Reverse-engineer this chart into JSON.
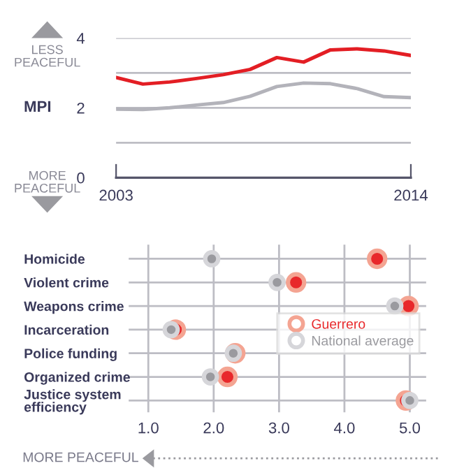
{
  "chart_data": [
    {
      "type": "line",
      "ylabel": "MPI",
      "x": [
        2003,
        2004,
        2005,
        2006,
        2007,
        2008,
        2009,
        2010,
        2011,
        2012,
        2013,
        2014
      ],
      "series": [
        {
          "color": "#e31e24",
          "values": [
            2.87,
            2.68,
            2.74,
            2.84,
            2.95,
            3.1,
            3.44,
            3.31,
            3.66,
            3.69,
            3.63,
            3.5
          ]
        },
        {
          "color": "#b3b3ba",
          "values": [
            1.96,
            1.95,
            2.0,
            2.08,
            2.15,
            2.33,
            2.61,
            2.71,
            2.69,
            2.55,
            2.32,
            2.29
          ]
        }
      ],
      "xlim": [
        2003,
        2014
      ],
      "xticks": [
        2003,
        2014
      ],
      "ylim": [
        0,
        4
      ],
      "yticks": [
        0,
        {
          "value": 1,
          "label": null
        },
        2,
        {
          "value": 3,
          "label": null
        },
        4
      ],
      "grid": "y",
      "line_style": "solid",
      "marker": "none",
      "annotations": [
        "LESS\nPEACEFUL",
        "MORE\nPEACEFUL"
      ]
    },
    {
      "type": "scatter",
      "orientation": "horizontal",
      "categories": [
        "Homicide",
        "Violent crime",
        "Weapons crime",
        "Incarceration",
        "Police funding",
        "Organized crime",
        "Justice system\nefficiency"
      ],
      "series": [
        {
          "name": "Guerrero",
          "color": "#e8282b",
          "values": [
            4.5,
            3.26,
            4.98,
            1.42,
            2.33,
            2.21,
            4.94
          ]
        },
        {
          "name": "National average",
          "color": "#9a9a9f",
          "values": [
            1.97,
            2.97,
            4.77,
            1.35,
            2.3,
            1.95,
            5.0
          ]
        }
      ],
      "xlim": [
        0.7,
        5.25
      ],
      "xticks": [
        {
          "value": 1,
          "label": "1.0"
        },
        {
          "value": 2,
          "label": "2.0"
        },
        {
          "value": 3,
          "label": "3.0"
        },
        {
          "value": 4,
          "label": "4.0"
        },
        {
          "value": 5,
          "label": "5.0"
        }
      ],
      "grid": true,
      "marker": "circle",
      "legend": "center right",
      "annotations": [
        "MORE PEACEFUL"
      ]
    }
  ]
}
